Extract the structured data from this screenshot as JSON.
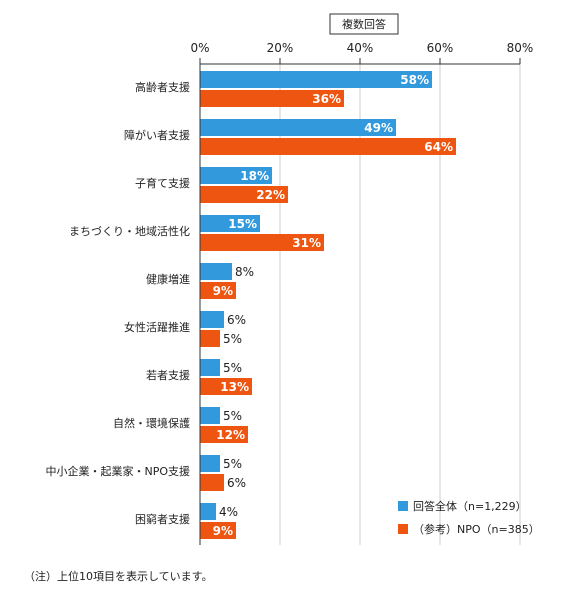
{
  "chart_data": {
    "type": "bar",
    "orientation": "horizontal",
    "box_label": "複数回答",
    "categories": [
      "高齢者支援",
      "障がい者支援",
      "子育て支援",
      "まちづくり・地域活性化",
      "健康増進",
      "女性活躍推進",
      "若者支援",
      "自然・環境保護",
      "中小企業・起業家・NPO支援",
      "困窮者支援"
    ],
    "series": [
      {
        "name": "回答全体（n=1,229）",
        "color": "#3399dd",
        "values": [
          58,
          49,
          18,
          15,
          8,
          6,
          5,
          5,
          5,
          4
        ]
      },
      {
        "name": "（参考）NPO（n=385）",
        "color": "#ee5511",
        "values": [
          36,
          64,
          22,
          31,
          9,
          5,
          13,
          12,
          6,
          9
        ]
      }
    ],
    "xlim": [
      0,
      80
    ],
    "ticks": [
      0,
      20,
      40,
      60,
      80
    ],
    "tick_suffix": "%",
    "legend_position": "bottom-right",
    "note": "（注）上位10項目を表示しています。"
  }
}
